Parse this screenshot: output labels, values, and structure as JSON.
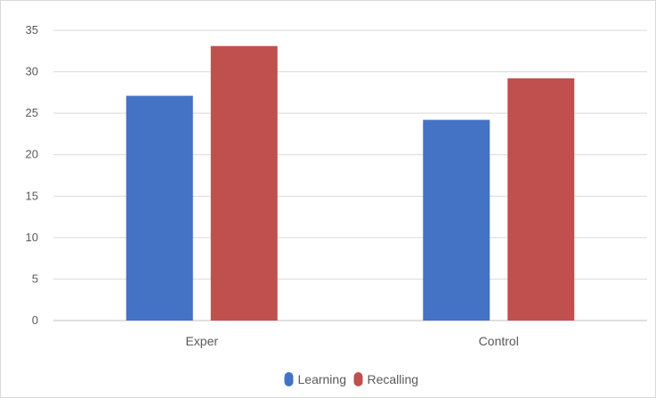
{
  "chart_data": {
    "type": "bar",
    "title": "",
    "xlabel": "",
    "ylabel": "",
    "categories": [
      "Exper",
      "Control"
    ],
    "series": [
      {
        "name": "Learning",
        "values": [
          27.1,
          24.2
        ],
        "color": "#4472C4"
      },
      {
        "name": "Recalling",
        "values": [
          33.1,
          29.2
        ],
        "color": "#C0504D"
      }
    ],
    "ylim": [
      0,
      35
    ],
    "yticks": [
      0,
      5,
      10,
      15,
      20,
      25,
      30,
      35
    ],
    "grid": true,
    "legend_position": "bottom",
    "gridline_color": "#d9d9d9",
    "axis_color": "#bfbfbf"
  }
}
